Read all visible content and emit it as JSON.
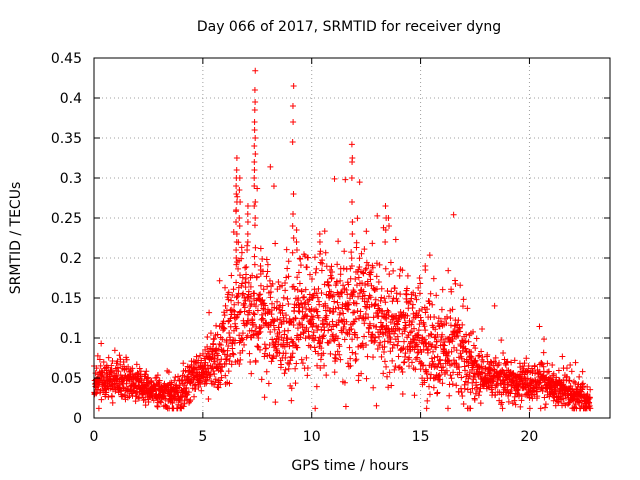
{
  "chart_data": {
    "type": "scatter",
    "title": "Day 066 of 2017, SRMTID for receiver dyng",
    "xlabel": "GPS time / hours",
    "ylabel": "SRMTID / TECUs",
    "xlim": [
      0,
      23.7
    ],
    "ylim": [
      0,
      0.45
    ],
    "x_ticks": [
      0,
      5,
      10,
      15,
      20
    ],
    "x_tick_labels": [
      "0",
      "5",
      "10",
      "15",
      "20"
    ],
    "y_ticks": [
      0,
      0.05,
      0.1,
      0.15,
      0.2,
      0.25,
      0.3,
      0.35,
      0.4,
      0.45
    ],
    "y_tick_labels": [
      "0",
      "0.05",
      "0.1",
      "0.15",
      "0.2",
      "0.25",
      "0.3",
      "0.35",
      "0.4",
      "0.45"
    ],
    "grid": true,
    "marker": "+",
    "color": "#ff0000",
    "envelope": {
      "description": "approximate typical SRMTID level vs GPS hour (read off the dense point cloud)",
      "x": [
        0,
        1,
        2,
        3,
        3.5,
        4,
        4.5,
        5,
        5.5,
        6,
        6.5,
        7,
        7.5,
        8,
        8.5,
        9,
        9.5,
        10,
        10.5,
        11,
        11.5,
        12,
        12.5,
        13,
        13.5,
        14,
        14.5,
        15,
        15.5,
        16,
        16.5,
        17,
        17.5,
        18,
        19,
        20,
        20.5,
        21,
        22,
        22.7
      ],
      "y": [
        0.045,
        0.045,
        0.042,
        0.035,
        0.028,
        0.03,
        0.05,
        0.06,
        0.075,
        0.09,
        0.13,
        0.14,
        0.13,
        0.12,
        0.1,
        0.12,
        0.13,
        0.13,
        0.13,
        0.125,
        0.13,
        0.15,
        0.14,
        0.12,
        0.12,
        0.12,
        0.11,
        0.1,
        0.09,
        0.09,
        0.085,
        0.08,
        0.055,
        0.05,
        0.045,
        0.04,
        0.05,
        0.04,
        0.03,
        0.025
      ]
    },
    "spread": {
      "x": [
        0,
        3,
        5,
        6,
        8,
        10,
        12,
        14,
        16,
        17,
        18,
        20,
        22.7
      ],
      "y": [
        0.012,
        0.01,
        0.012,
        0.03,
        0.04,
        0.04,
        0.04,
        0.035,
        0.03,
        0.03,
        0.012,
        0.012,
        0.01
      ]
    },
    "x_range_with_data": [
      0,
      22.8
    ],
    "spikes": [
      {
        "x": 6.55,
        "values": [
          0.325,
          0.31,
          0.3,
          0.29,
          0.28,
          0.27,
          0.26,
          0.245,
          0.23,
          0.22,
          0.21,
          0.2
        ]
      },
      {
        "x": 6.7,
        "values": [
          0.3,
          0.285,
          0.27,
          0.25,
          0.24
        ]
      },
      {
        "x": 7.05,
        "values": [
          0.265,
          0.255,
          0.245,
          0.23,
          0.22,
          0.21
        ]
      },
      {
        "x": 7.38,
        "values": [
          0.434,
          0.41,
          0.395,
          0.385,
          0.37,
          0.36,
          0.35,
          0.34,
          0.33,
          0.32,
          0.31,
          0.3,
          0.29,
          0.27,
          0.265,
          0.25
        ]
      },
      {
        "x": 7.65,
        "values": [
          0.19,
          0.185,
          0.18
        ]
      },
      {
        "x": 9.15,
        "values": [
          0.415,
          0.39,
          0.37,
          0.345,
          0.28,
          0.255,
          0.24,
          0.225
        ]
      },
      {
        "x": 9.3,
        "values": [
          0.235,
          0.22,
          0.21
        ]
      },
      {
        "x": 10.4,
        "values": [
          0.23,
          0.22,
          0.205
        ]
      },
      {
        "x": 11.85,
        "values": [
          0.342,
          0.325,
          0.32,
          0.3,
          0.27,
          0.245,
          0.23
        ]
      },
      {
        "x": 13.4,
        "values": [
          0.265,
          0.25,
          0.235,
          0.22
        ]
      },
      {
        "x": 13.55,
        "values": [
          0.25,
          0.24
        ]
      },
      {
        "x": 15.2,
        "values": [
          0.19,
          0.185
        ]
      }
    ]
  }
}
